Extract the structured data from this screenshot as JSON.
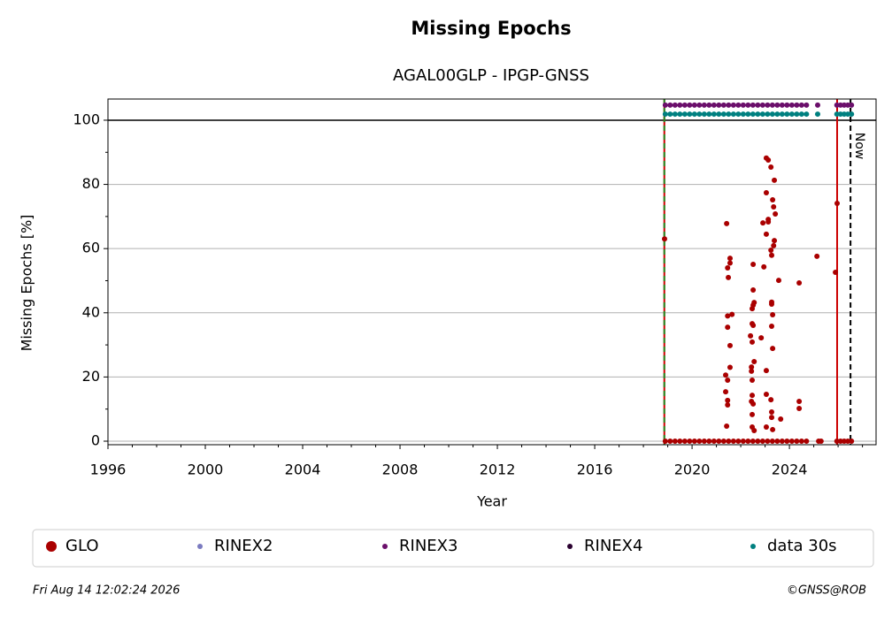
{
  "chart_data": {
    "type": "scatter",
    "title": "Missing Epochs",
    "subtitle": "AGAL00GLP - IPGP-GNSS",
    "x_label": "Year",
    "y_label": "Missing Epochs [%]",
    "xlim": [
      1996,
      2027.56
    ],
    "ylim": [
      -1.1,
      106.6
    ],
    "xticks": [
      1996,
      2000,
      2004,
      2008,
      2012,
      2016,
      2020,
      2024
    ],
    "xminor": [
      1997,
      1998,
      1999,
      2001,
      2002,
      2003,
      2005,
      2006,
      2007,
      2009,
      2010,
      2011,
      2013,
      2014,
      2015,
      2017,
      2018,
      2019,
      2021,
      2022,
      2023,
      2025,
      2026,
      2027
    ],
    "yticks": [
      0,
      20,
      40,
      60,
      80,
      100
    ],
    "yminor": [
      10,
      30,
      50,
      70,
      90
    ],
    "grid": true,
    "hline": 100,
    "vlines": [
      {
        "x": 2018.86,
        "color": "#cc0000",
        "dash": false
      },
      {
        "x": 2018.86,
        "color": "#228b22",
        "dash": true
      },
      {
        "x": 2025.96,
        "color": "#cc0000",
        "dash": false
      },
      {
        "x": 2026.51,
        "color": "#000000",
        "dash": true,
        "label": "Now"
      }
    ],
    "series": [
      {
        "name": "GLO",
        "color": "#aa0000",
        "x": [
          2018.87,
          2021.42,
          2021.46,
          2021.56,
          2021.56,
          2021.49,
          2021.46,
          2021.64,
          2021.46,
          2021.56,
          2021.56,
          2021.38,
          2021.46,
          2021.38,
          2021.46,
          2021.46,
          2021.42,
          2022.51,
          2022.47,
          2022.55,
          2022.51,
          2022.51,
          2022.47,
          2022.51,
          2022.4,
          2022.47,
          2022.55,
          2022.44,
          2022.44,
          2022.47,
          2022.47,
          2022.44,
          2022.51,
          2022.47,
          2022.47,
          2022.55,
          2022.84,
          2022.91,
          2022.95,
          2023.13,
          2023.05,
          2023.13,
          2023.24,
          2023.38,
          2023.05,
          2023.05,
          2023.13,
          2023.31,
          2023.35,
          2023.42,
          2023.35,
          2023.38,
          2023.24,
          2023.27,
          2023.56,
          2023.27,
          2023.27,
          2023.31,
          2023.27,
          2023.31,
          2023.05,
          2023.05,
          2023.24,
          2023.27,
          2023.27,
          2023.64,
          2023.05,
          2023.31,
          2024.4,
          2024.4,
          2024.4,
          2025.13,
          2025.89,
          2025.96,
          2018.9,
          2019.1,
          2019.3,
          2019.5,
          2019.7,
          2019.9,
          2020.1,
          2020.3,
          2020.5,
          2020.7,
          2020.9,
          2021.1,
          2021.3,
          2021.5,
          2021.7,
          2021.9,
          2022.1,
          2022.3,
          2022.5,
          2022.7,
          2022.9,
          2023.1,
          2023.3,
          2023.5,
          2023.7,
          2023.9,
          2024.1,
          2024.3,
          2024.5,
          2024.7,
          2025.2,
          2025.3,
          2025.95,
          2026.1,
          2026.25,
          2026.4,
          2026.55
        ],
        "values": [
          63,
          67.8,
          54,
          55.5,
          57,
          51,
          39,
          39.5,
          35.5,
          29.8,
          23,
          20.6,
          19,
          15.4,
          12.7,
          11.3,
          4.7,
          42.4,
          41.3,
          43.2,
          47.1,
          55.1,
          36.6,
          36.1,
          32.8,
          30.9,
          24.8,
          23.1,
          21.8,
          19,
          14.3,
          12.4,
          11.6,
          8.3,
          4.4,
          3.3,
          32.2,
          68,
          54.3,
          68.3,
          88.2,
          87.6,
          85.4,
          81.3,
          77.4,
          64.5,
          69.1,
          75.2,
          73,
          70.8,
          60.9,
          62.5,
          59.5,
          57.9,
          50.1,
          42.7,
          43.3,
          39.4,
          35.8,
          28.9,
          22,
          14.6,
          12.9,
          9.1,
          7.4,
          6.9,
          4.4,
          3.6,
          49.3,
          12.4,
          10.2,
          57.6,
          52.6,
          74.1,
          0,
          0,
          0,
          0,
          0,
          0,
          0,
          0,
          0,
          0,
          0,
          0,
          0,
          0,
          0,
          0,
          0,
          0,
          0,
          0,
          0,
          0,
          0,
          0,
          0,
          0,
          0,
          0,
          0,
          0,
          0,
          0,
          0,
          0,
          0,
          0,
          0
        ]
      },
      {
        "name": "RINEX2",
        "color": "#7b7bc0",
        "x": [],
        "values": []
      },
      {
        "name": "RINEX3",
        "color": "#6b0f6b",
        "x": [
          2018.9,
          2019.1,
          2019.3,
          2019.5,
          2019.7,
          2019.9,
          2020.1,
          2020.3,
          2020.5,
          2020.7,
          2020.9,
          2021.1,
          2021.3,
          2021.5,
          2021.7,
          2021.9,
          2022.1,
          2022.3,
          2022.5,
          2022.7,
          2022.9,
          2023.1,
          2023.3,
          2023.5,
          2023.7,
          2023.9,
          2024.1,
          2024.3,
          2024.5,
          2024.7,
          2025.16,
          2025.95,
          2026.1,
          2026.25,
          2026.4,
          2026.55
        ],
        "values": [
          104.7,
          104.7,
          104.7,
          104.7,
          104.7,
          104.7,
          104.7,
          104.7,
          104.7,
          104.7,
          104.7,
          104.7,
          104.7,
          104.7,
          104.7,
          104.7,
          104.7,
          104.7,
          104.7,
          104.7,
          104.7,
          104.7,
          104.7,
          104.7,
          104.7,
          104.7,
          104.7,
          104.7,
          104.7,
          104.7,
          104.7,
          104.7,
          104.7,
          104.7,
          104.7,
          104.7
        ]
      },
      {
        "name": "RINEX4",
        "color": "#2a0030",
        "x": [],
        "values": []
      },
      {
        "name": "data 30s",
        "color": "#008080",
        "x": [
          2018.9,
          2019.1,
          2019.3,
          2019.5,
          2019.7,
          2019.9,
          2020.1,
          2020.3,
          2020.5,
          2020.7,
          2020.9,
          2021.1,
          2021.3,
          2021.5,
          2021.7,
          2021.9,
          2022.1,
          2022.3,
          2022.5,
          2022.7,
          2022.9,
          2023.1,
          2023.3,
          2023.5,
          2023.7,
          2023.9,
          2024.1,
          2024.3,
          2024.5,
          2024.7,
          2025.16,
          2025.95,
          2026.1,
          2026.25,
          2026.4,
          2026.55
        ],
        "values": [
          101.9,
          101.9,
          101.9,
          101.9,
          101.9,
          101.9,
          101.9,
          101.9,
          101.9,
          101.9,
          101.9,
          101.9,
          101.9,
          101.9,
          101.9,
          101.9,
          101.9,
          101.9,
          101.9,
          101.9,
          101.9,
          101.9,
          101.9,
          101.9,
          101.9,
          101.9,
          101.9,
          101.9,
          101.9,
          101.9,
          101.9,
          101.9,
          101.9,
          101.9,
          101.9,
          101.9
        ]
      }
    ],
    "timestamp": "Fri Aug 14 12:02:24 2026",
    "credit": "©GNSS@ROB"
  }
}
